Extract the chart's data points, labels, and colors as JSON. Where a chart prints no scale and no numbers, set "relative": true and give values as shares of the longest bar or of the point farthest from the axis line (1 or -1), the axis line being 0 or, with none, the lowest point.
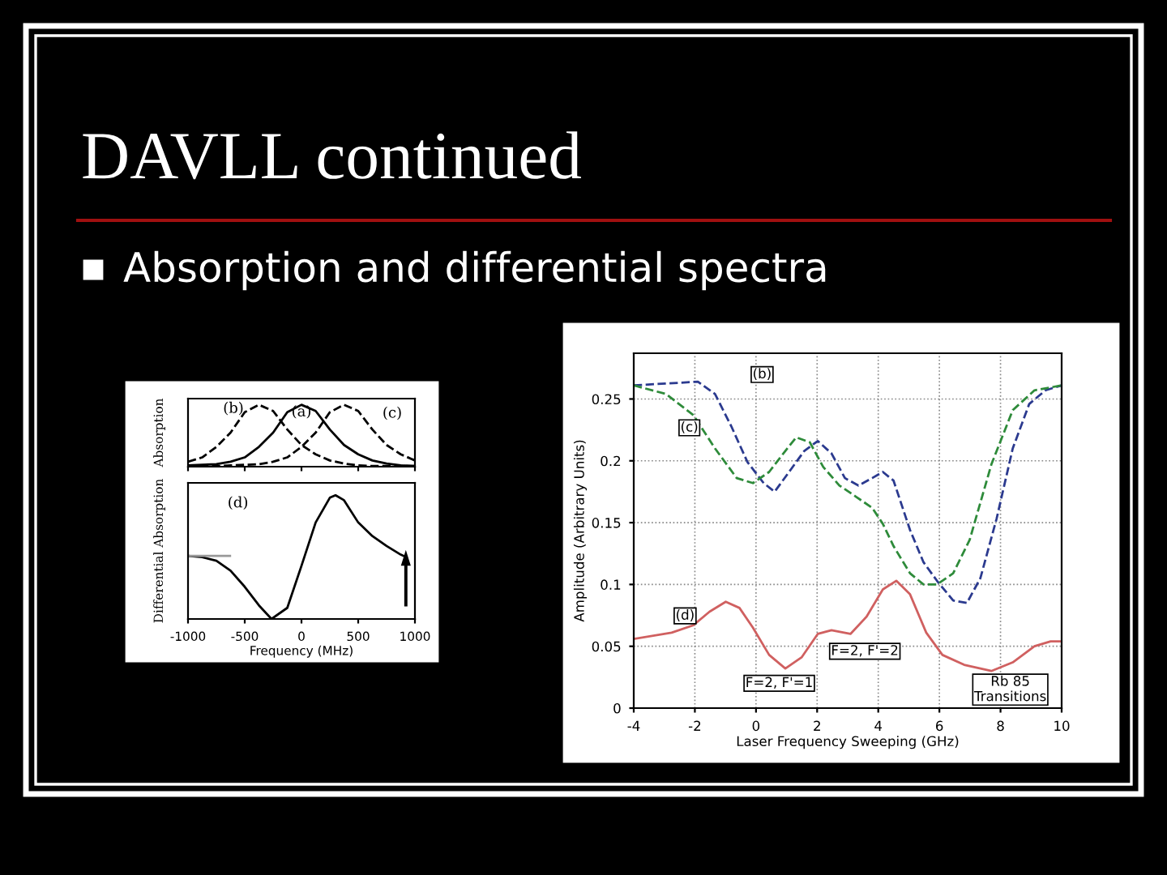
{
  "chart_data": [
    {
      "type": "line",
      "title": "DAVLL continued",
      "subtitle": "Absorption and differential spectra",
      "relative": true,
      "ylabel": "Absorption",
      "xlim": [
        -1000,
        1000
      ],
      "xticks": [
        -1000,
        -500,
        0,
        500,
        1000
      ],
      "tick_labels": false,
      "series": [
        {
          "color": "#000000",
          "line_style": "solid",
          "x": [
            -1000,
            -875,
            -750,
            -625,
            -500,
            -375,
            -250,
            -125,
            0,
            125,
            250,
            375,
            500,
            625,
            750,
            875,
            1000
          ],
          "values": [
            0.02,
            0.03,
            0.04,
            0.08,
            0.15,
            0.32,
            0.55,
            0.88,
            1,
            0.9,
            0.6,
            0.35,
            0.2,
            0.1,
            0.05,
            0.02,
            0.01
          ]
        },
        {
          "color": "#000000",
          "line_style": "dashed",
          "x": [
            -1000,
            -875,
            -750,
            -625,
            -500,
            -375,
            -250,
            -125,
            0,
            125,
            250,
            375,
            500,
            625,
            750,
            875,
            1000
          ],
          "values": [
            0.08,
            0.15,
            0.32,
            0.55,
            0.88,
            1,
            0.9,
            0.6,
            0.35,
            0.2,
            0.1,
            0.05,
            0.02,
            0.01,
            0.01,
            0.01,
            0.01
          ]
        },
        {
          "color": "#000000",
          "line_style": "dashed",
          "x": [
            -1000,
            -875,
            -750,
            -625,
            -500,
            -375,
            -250,
            -125,
            0,
            125,
            250,
            375,
            500,
            625,
            750,
            875,
            1000
          ],
          "values": [
            0.01,
            0.01,
            0.01,
            0.02,
            0.03,
            0.04,
            0.08,
            0.15,
            0.32,
            0.55,
            0.88,
            1,
            0.9,
            0.6,
            0.35,
            0.2,
            0.1
          ]
        }
      ],
      "annotations": [
        "(b)",
        "(a)",
        "(c)"
      ]
    },
    {
      "type": "line",
      "relative": true,
      "ylabel": "Differential Absorption",
      "xlabel": "Frequency (MHz)",
      "xlim": [
        -1000,
        1000
      ],
      "xticks": [
        -1000,
        -500,
        0,
        500,
        1000
      ],
      "tick_labels": "x",
      "series": [
        {
          "color": "#000000",
          "line_style": "solid",
          "x": [
            -1000,
            -875,
            -750,
            -625,
            -500,
            -375,
            -264,
            -125,
            0,
            125,
            250,
            300,
            375,
            500,
            625,
            750,
            875,
            900
          ],
          "values": [
            0.51,
            0.5,
            0.47,
            0.39,
            0.26,
            0.11,
            0,
            0.09,
            0.43,
            0.78,
            0.98,
            1,
            0.96,
            0.78,
            0.67,
            0.59,
            0.52,
            0.51
          ]
        },
        {
          "color": "#999999",
          "line_style": "solid",
          "x": [
            -1000,
            -630
          ],
          "values": [
            0.51,
            0.51
          ]
        }
      ],
      "annotations": [
        "(d)"
      ]
    },
    {
      "type": "line",
      "xlabel": "Laser Frequency Sweeping (GHz)",
      "ylabel": "Amplitude (Arbitrary Units)",
      "xlim": [
        -4,
        10
      ],
      "xticks": [
        -4,
        -2,
        0,
        2,
        4,
        6,
        8,
        10
      ],
      "ylim": [
        0,
        0.287
      ],
      "yticks": [
        0,
        0.05,
        0.1,
        0.15,
        0.2,
        0.25
      ],
      "grid": true,
      "series": [
        {
          "color": "#2b3a8f",
          "line_style": "dashed",
          "x": [
            -4,
            -1.9,
            -1.34,
            -0.81,
            -0.28,
            0.25,
            0.61,
            1.14,
            1.58,
            2.02,
            2.47,
            2.91,
            3.35,
            3.8,
            4.15,
            4.5,
            5.04,
            5.48,
            5.92,
            6.45,
            6.9,
            7.34,
            7.87,
            8.4,
            8.94,
            9.47,
            10
          ],
          "values": [
            0.261,
            0.264,
            0.254,
            0.228,
            0.199,
            0.182,
            0.175,
            0.193,
            0.208,
            0.216,
            0.206,
            0.186,
            0.18,
            0.186,
            0.191,
            0.184,
            0.144,
            0.118,
            0.103,
            0.087,
            0.085,
            0.105,
            0.153,
            0.21,
            0.246,
            0.257,
            0.261
          ]
        },
        {
          "color": "#2e8b3a",
          "line_style": "dashed",
          "x": [
            -4,
            -2.94,
            -2.05,
            -1.34,
            -0.63,
            -0.1,
            0.43,
            0.96,
            1.32,
            1.76,
            2.2,
            2.73,
            3.27,
            3.8,
            4.15,
            4.5,
            5.04,
            5.48,
            5.92,
            6.45,
            6.99,
            7.7,
            8.4,
            9.11,
            10
          ],
          "values": [
            0.261,
            0.254,
            0.237,
            0.21,
            0.186,
            0.182,
            0.191,
            0.208,
            0.219,
            0.215,
            0.195,
            0.18,
            0.171,
            0.162,
            0.149,
            0.131,
            0.109,
            0.1,
            0.1,
            0.109,
            0.136,
            0.197,
            0.241,
            0.257,
            0.261
          ]
        },
        {
          "color": "#d06060",
          "line_style": "solid",
          "x": [
            -4,
            -2.76,
            -2.05,
            -1.52,
            -0.99,
            -0.54,
            -0.1,
            0.43,
            0.96,
            1.49,
            2.02,
            2.47,
            3.09,
            3.62,
            4.15,
            4.59,
            5.04,
            5.57,
            6.1,
            6.81,
            7.7,
            8.4,
            9.11,
            9.64,
            10
          ],
          "values": [
            0.056,
            0.061,
            0.067,
            0.078,
            0.086,
            0.081,
            0.065,
            0.043,
            0.032,
            0.041,
            0.06,
            0.063,
            0.06,
            0.074,
            0.096,
            0.103,
            0.092,
            0.061,
            0.043,
            0.035,
            0.03,
            0.037,
            0.05,
            0.054,
            0.054
          ]
        }
      ],
      "annotations": [
        "(b)",
        "(c)",
        "(d)",
        "F=2, F'=1",
        "F=2, F'=2",
        "Rb 85\nTransitions"
      ]
    }
  ]
}
